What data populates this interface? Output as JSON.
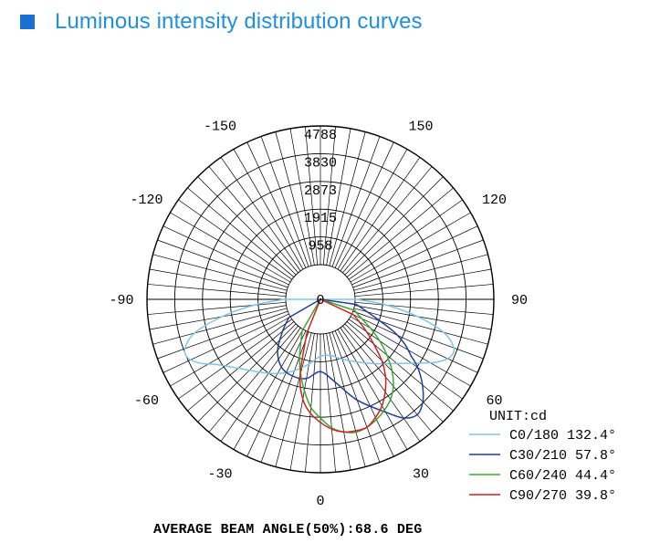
{
  "header": {
    "title": "Luminous intensity distribution curves",
    "accent": "#1a6fd1",
    "title_color": "#1f8fe0"
  },
  "chart_data": {
    "type": "polar",
    "title": "Luminous intensity distribution curves",
    "unit_label": "UNIT:cd",
    "radial_ticks": [
      "0",
      "958",
      "1915",
      "2873",
      "3830",
      "4788"
    ],
    "radial_max": 4788,
    "angle_labels": [
      {
        "angle": 0,
        "label": "0"
      },
      {
        "angle": 30,
        "label": "30"
      },
      {
        "angle": 60,
        "label": "60"
      },
      {
        "angle": 90,
        "label": "90"
      },
      {
        "angle": 120,
        "label": "120"
      },
      {
        "angle": 150,
        "label": "150"
      },
      {
        "angle": -30,
        "label": "-30"
      },
      {
        "angle": -60,
        "label": "-60"
      },
      {
        "angle": -90,
        "label": "-90"
      },
      {
        "angle": -120,
        "label": "-120"
      },
      {
        "angle": -150,
        "label": "-150"
      }
    ],
    "grid": true,
    "legend_position": "bottom-right",
    "series": [
      {
        "name": "C0/180",
        "beam_angle": "132.4°",
        "color": "#7fc6e8",
        "points": [
          [
            -90,
            60
          ],
          [
            -85,
            1100
          ],
          [
            -80,
            2250
          ],
          [
            -75,
            3300
          ],
          [
            -70,
            3780
          ],
          [
            -66,
            3800
          ],
          [
            -62,
            3500
          ],
          [
            -58,
            3050
          ],
          [
            -50,
            2500
          ],
          [
            -40,
            2080
          ],
          [
            -30,
            1760
          ],
          [
            -20,
            1420
          ],
          [
            -10,
            1070
          ],
          [
            0,
            770
          ],
          [
            10,
            770
          ],
          [
            20,
            1000
          ],
          [
            30,
            1300
          ],
          [
            40,
            1700
          ],
          [
            50,
            2250
          ],
          [
            58,
            2950
          ],
          [
            62,
            3400
          ],
          [
            66,
            3700
          ],
          [
            70,
            3700
          ],
          [
            75,
            3200
          ],
          [
            80,
            2200
          ],
          [
            85,
            1100
          ],
          [
            90,
            60
          ]
        ]
      },
      {
        "name": "C30/210",
        "beam_angle": "57.8°",
        "color": "#1f3f9a",
        "points": [
          [
            -60,
            60
          ],
          [
            -50,
            500
          ],
          [
            -40,
            1100
          ],
          [
            -30,
            1500
          ],
          [
            -20,
            1620
          ],
          [
            -10,
            1580
          ],
          [
            0,
            1300
          ],
          [
            10,
            1700
          ],
          [
            20,
            2500
          ],
          [
            30,
            3300
          ],
          [
            35,
            3800
          ],
          [
            40,
            4000
          ],
          [
            45,
            3800
          ],
          [
            50,
            3400
          ],
          [
            55,
            2900
          ],
          [
            58,
            2500
          ],
          [
            62,
            2100
          ],
          [
            66,
            1600
          ],
          [
            70,
            1000
          ],
          [
            76,
            400
          ],
          [
            82,
            60
          ]
        ]
      },
      {
        "name": "C60/240",
        "beam_angle": "44.4°",
        "color": "#3aa832",
        "points": [
          [
            -30,
            60
          ],
          [
            -20,
            900
          ],
          [
            -15,
            1450
          ],
          [
            -10,
            2000
          ],
          [
            -5,
            2550
          ],
          [
            0,
            2900
          ],
          [
            5,
            3250
          ],
          [
            10,
            3450
          ],
          [
            15,
            3550
          ],
          [
            20,
            3500
          ],
          [
            25,
            3380
          ],
          [
            30,
            3220
          ],
          [
            35,
            3020
          ],
          [
            40,
            2720
          ],
          [
            45,
            2300
          ],
          [
            50,
            1800
          ],
          [
            55,
            1300
          ],
          [
            60,
            800
          ],
          [
            68,
            200
          ],
          [
            72,
            60
          ]
        ]
      },
      {
        "name": "C90/270",
        "beam_angle": "39.8°",
        "color": "#cc2222",
        "points": [
          [
            -22,
            60
          ],
          [
            -15,
            1500
          ],
          [
            -10,
            2300
          ],
          [
            -5,
            2750
          ],
          [
            0,
            3050
          ],
          [
            5,
            3300
          ],
          [
            10,
            3450
          ],
          [
            15,
            3500
          ],
          [
            20,
            3500
          ],
          [
            25,
            3300
          ],
          [
            30,
            3050
          ],
          [
            35,
            2700
          ],
          [
            40,
            2300
          ],
          [
            45,
            1800
          ],
          [
            50,
            1200
          ],
          [
            55,
            750
          ],
          [
            60,
            350
          ],
          [
            65,
            60
          ]
        ]
      }
    ],
    "average_beam_angle": "AVERAGE BEAM ANGLE(50%):68.6 DEG"
  }
}
